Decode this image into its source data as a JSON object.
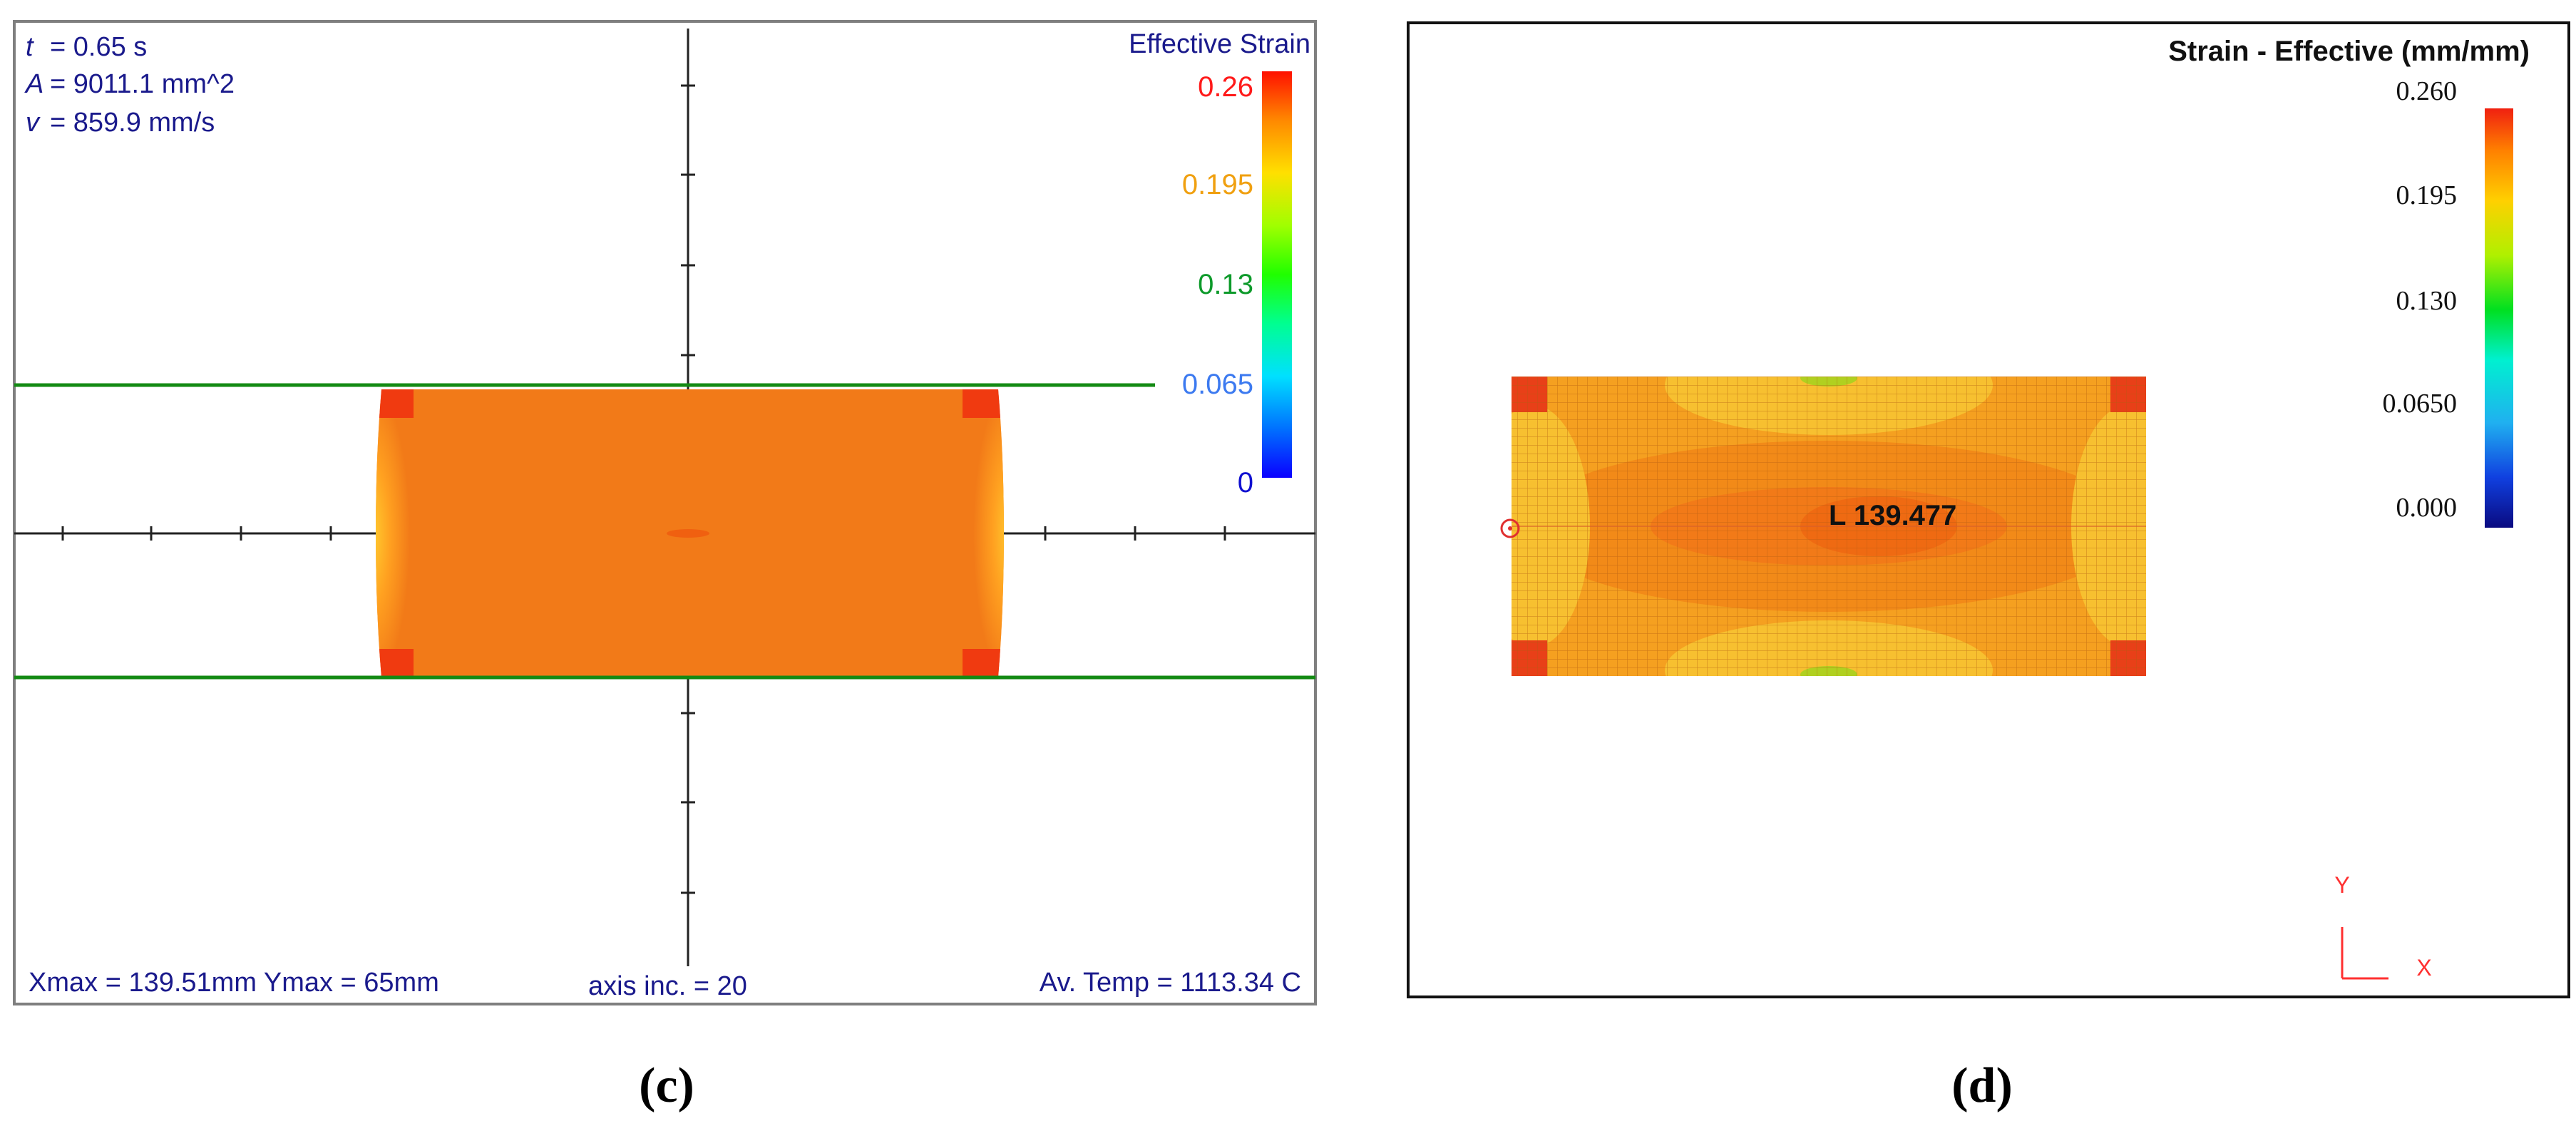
{
  "panel_c": {
    "info": {
      "t_sym": "t",
      "t_val": "= 0.65 s",
      "a_sym": "A",
      "a_val": "= 9011.1 mm^2",
      "v_sym": "v",
      "v_val": "= 859.9 mm/s"
    },
    "legend": {
      "title": "Effective Strain",
      "ticks": [
        "0.26",
        "0.195",
        "0.13",
        "0.065",
        "0"
      ]
    },
    "footer": {
      "extents": "Xmax = 139.51mm  Ymax = 65mm",
      "axis_inc": "axis inc. = 20",
      "temp": "Av. Temp = 1113.34 C"
    },
    "caption": "(c)"
  },
  "panel_d": {
    "legend": {
      "title": "Strain - Effective (mm/mm)",
      "ticks": [
        "0.260",
        "0.195",
        "0.130",
        "0.0650",
        "0.000"
      ]
    },
    "probe_label": "L  139.477",
    "triad": {
      "y": "Y",
      "x": "X"
    },
    "caption": "(d)"
  },
  "colors": {
    "panel_c_text": "#1a1a8c",
    "outline_gray": "#7f7f7f",
    "die_line": "#138a13",
    "body_orange": "#f27a18",
    "tick_red": "#ff1a1a",
    "tick_orange": "#f0a010",
    "tick_green": "#0d9a2a",
    "tick_blue": "#3c7af0",
    "tick_darkblue": "#1010d0",
    "triad_red": "#ff3030"
  }
}
